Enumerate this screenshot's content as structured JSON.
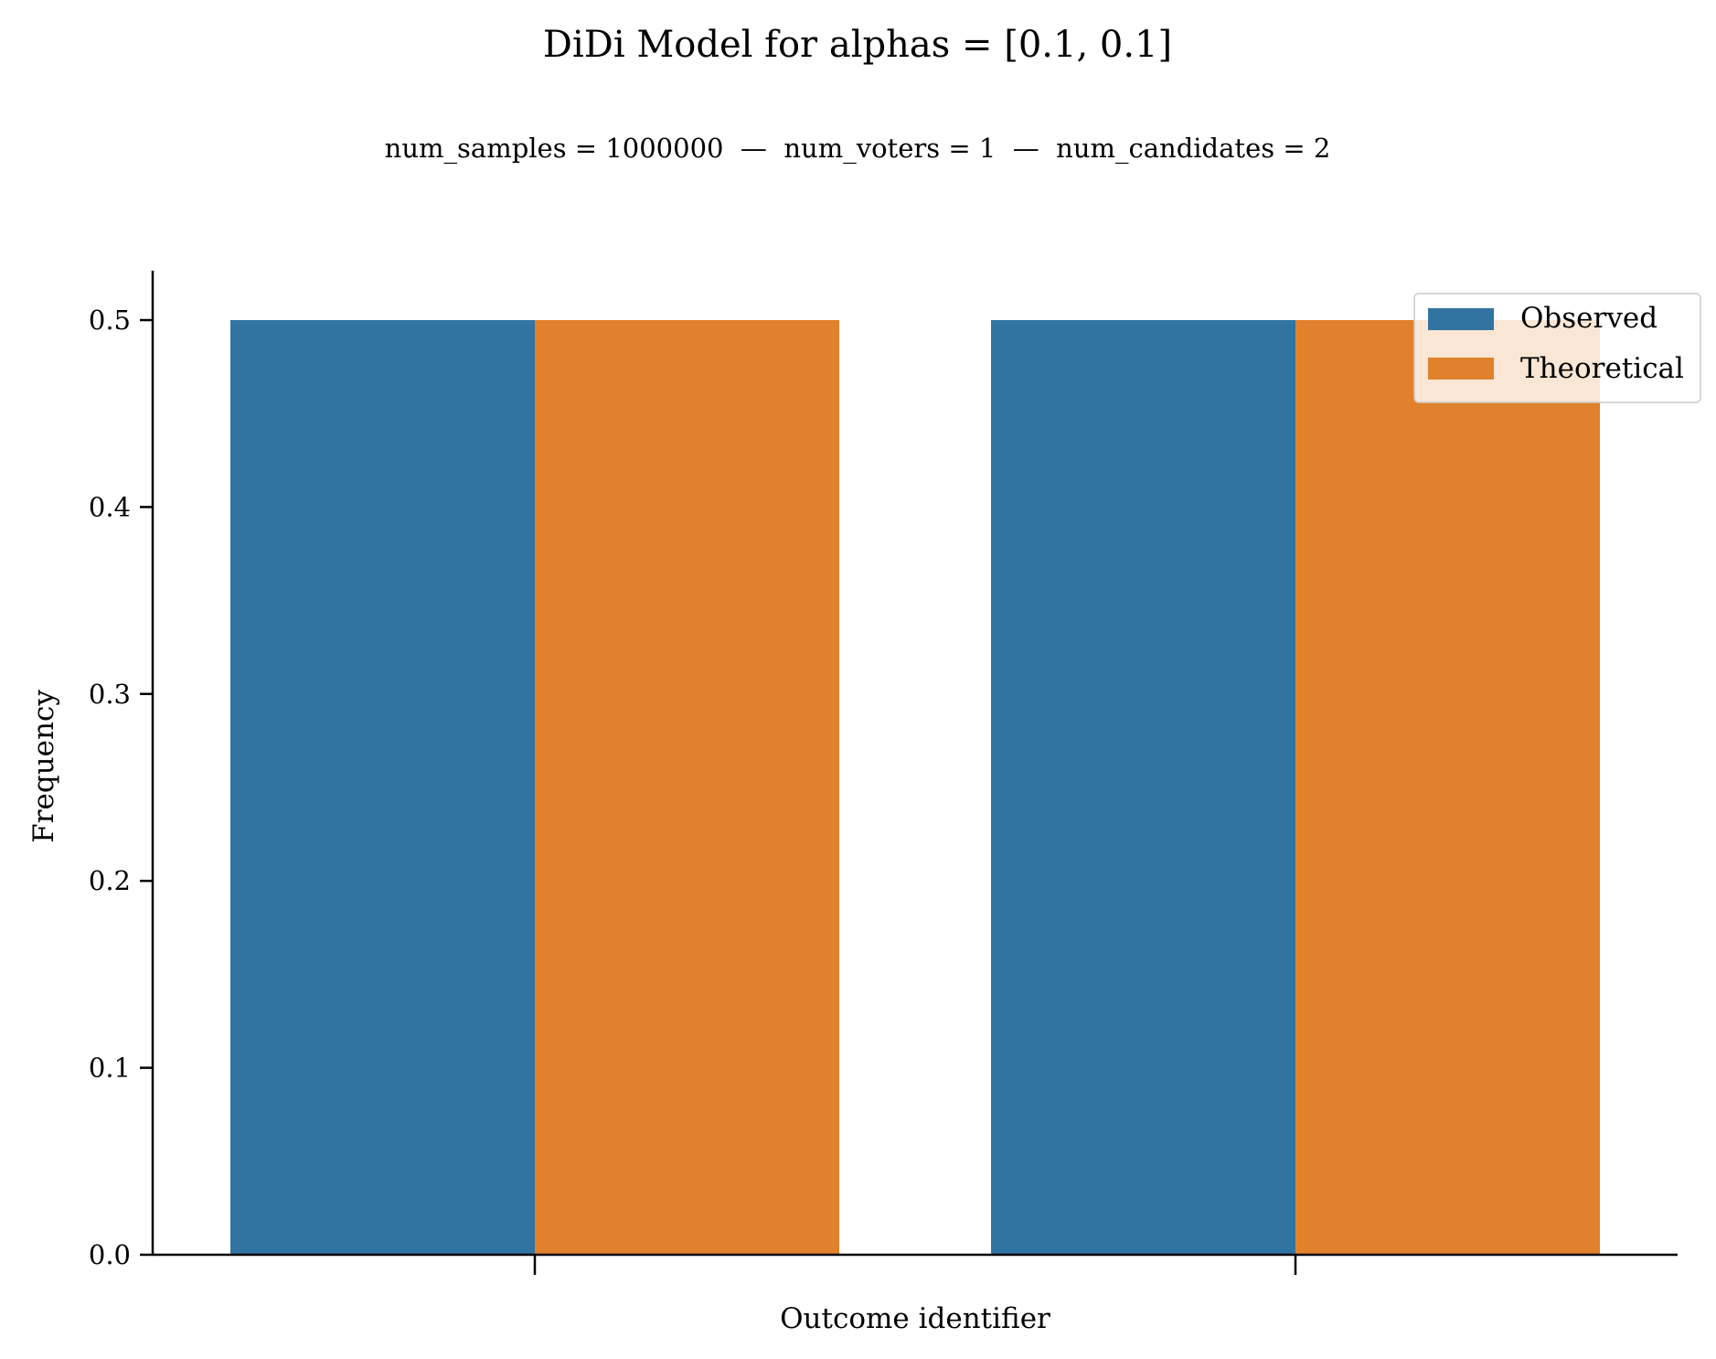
{
  "chart_data": {
    "type": "bar",
    "title": "DiDi Model for alphas = [0.1, 0.1]",
    "subtitle": "num_samples = 1000000  —  num_voters = 1  —  num_candidates = 2",
    "xlabel": "Outcome identifier",
    "ylabel": "Frequency",
    "categories": [
      "",
      ""
    ],
    "series": [
      {
        "name": "Observed",
        "values": [
          0.5,
          0.5
        ],
        "color": "#3274A1"
      },
      {
        "name": "Theoretical",
        "values": [
          0.5,
          0.5
        ],
        "color": "#E1812C"
      }
    ],
    "ylim": [
      0,
      0.525
    ],
    "yticks": [
      0.0,
      0.1,
      0.2,
      0.3,
      0.4,
      0.5
    ],
    "ytick_labels": [
      "0.0",
      "0.1",
      "0.2",
      "0.3",
      "0.4",
      "0.5"
    ],
    "grid": false,
    "legend_position": "top-right"
  }
}
